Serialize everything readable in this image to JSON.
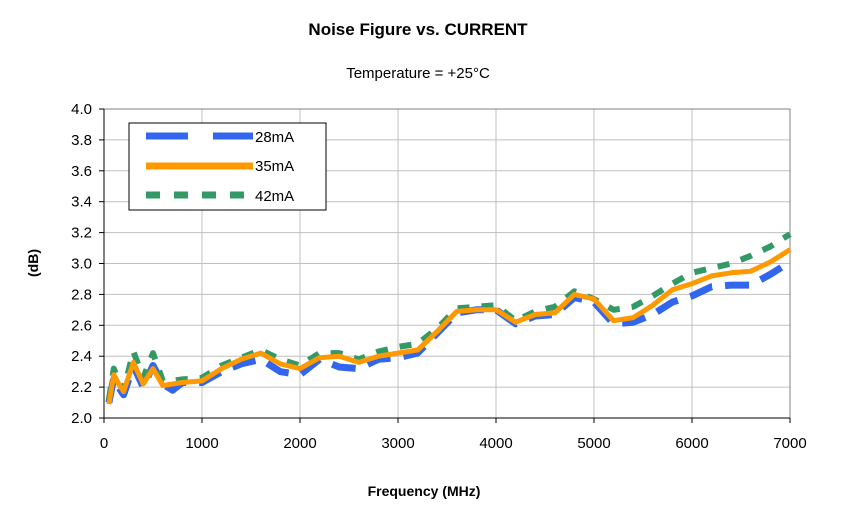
{
  "chart_data": {
    "type": "line",
    "title": "Noise Figure vs. CURRENT",
    "subtitle": "Temperature = +25°C",
    "xlabel": "Frequency (MHz)",
    "ylabel": "(dB)",
    "xlim": [
      0,
      7000
    ],
    "ylim": [
      2.0,
      4.0
    ],
    "xticks": [
      0,
      1000,
      2000,
      3000,
      4000,
      5000,
      6000,
      7000
    ],
    "yticks": [
      "2.0",
      "2.2",
      "2.4",
      "2.6",
      "2.8",
      "3.0",
      "3.2",
      "3.4",
      "3.6",
      "3.8",
      "4.0"
    ],
    "grid": true,
    "legend_position": "top-left",
    "series": [
      {
        "name": "28mA",
        "color": "#3366ee",
        "style": "dashed",
        "x": [
          50,
          100,
          150,
          200,
          300,
          400,
          500,
          600,
          700,
          800,
          1000,
          1200,
          1400,
          1600,
          1800,
          2000,
          2200,
          2400,
          2600,
          2800,
          3000,
          3200,
          3400,
          3600,
          3800,
          4000,
          4200,
          4400,
          4600,
          4800,
          5000,
          5200,
          5400,
          5600,
          5800,
          6000,
          6200,
          6400,
          6600,
          6800,
          7000
        ],
        "values": [
          2.1,
          2.26,
          2.2,
          2.15,
          2.34,
          2.2,
          2.34,
          2.22,
          2.18,
          2.23,
          2.23,
          2.3,
          2.35,
          2.38,
          2.3,
          2.28,
          2.38,
          2.33,
          2.32,
          2.38,
          2.39,
          2.42,
          2.55,
          2.68,
          2.7,
          2.7,
          2.61,
          2.66,
          2.67,
          2.78,
          2.75,
          2.61,
          2.62,
          2.67,
          2.75,
          2.79,
          2.85,
          2.86,
          2.86,
          2.93,
          3.01
        ]
      },
      {
        "name": "35mA",
        "color": "#ff9900",
        "style": "solid",
        "x": [
          50,
          100,
          150,
          200,
          300,
          400,
          500,
          600,
          700,
          800,
          1000,
          1200,
          1400,
          1600,
          1800,
          2000,
          2200,
          2400,
          2600,
          2800,
          3000,
          3200,
          3400,
          3600,
          3800,
          4000,
          4200,
          4400,
          4600,
          4800,
          5000,
          5200,
          5400,
          5600,
          5800,
          6000,
          6200,
          6400,
          6600,
          6800,
          7000
        ],
        "values": [
          2.09,
          2.28,
          2.22,
          2.17,
          2.36,
          2.22,
          2.32,
          2.21,
          2.22,
          2.23,
          2.24,
          2.32,
          2.38,
          2.42,
          2.35,
          2.32,
          2.39,
          2.4,
          2.36,
          2.4,
          2.42,
          2.44,
          2.56,
          2.69,
          2.7,
          2.7,
          2.62,
          2.67,
          2.68,
          2.8,
          2.77,
          2.63,
          2.65,
          2.73,
          2.83,
          2.87,
          2.92,
          2.94,
          2.95,
          3.01,
          3.09
        ]
      },
      {
        "name": "42mA",
        "color": "#339966",
        "style": "dashed",
        "x": [
          50,
          100,
          150,
          200,
          300,
          400,
          500,
          600,
          700,
          800,
          1000,
          1200,
          1400,
          1600,
          1800,
          2000,
          2200,
          2400,
          2600,
          2800,
          3000,
          3200,
          3400,
          3600,
          3800,
          4000,
          4200,
          4400,
          4600,
          4800,
          5000,
          5200,
          5400,
          5600,
          5800,
          6000,
          6200,
          6400,
          6600,
          6800,
          7000
        ],
        "values": [
          2.12,
          2.32,
          2.24,
          2.18,
          2.43,
          2.26,
          2.42,
          2.24,
          2.24,
          2.25,
          2.26,
          2.34,
          2.39,
          2.44,
          2.38,
          2.34,
          2.42,
          2.42,
          2.38,
          2.43,
          2.46,
          2.48,
          2.58,
          2.71,
          2.72,
          2.73,
          2.63,
          2.69,
          2.72,
          2.82,
          2.77,
          2.7,
          2.72,
          2.79,
          2.87,
          2.94,
          2.97,
          3.0,
          3.05,
          3.11,
          3.19
        ]
      }
    ]
  }
}
